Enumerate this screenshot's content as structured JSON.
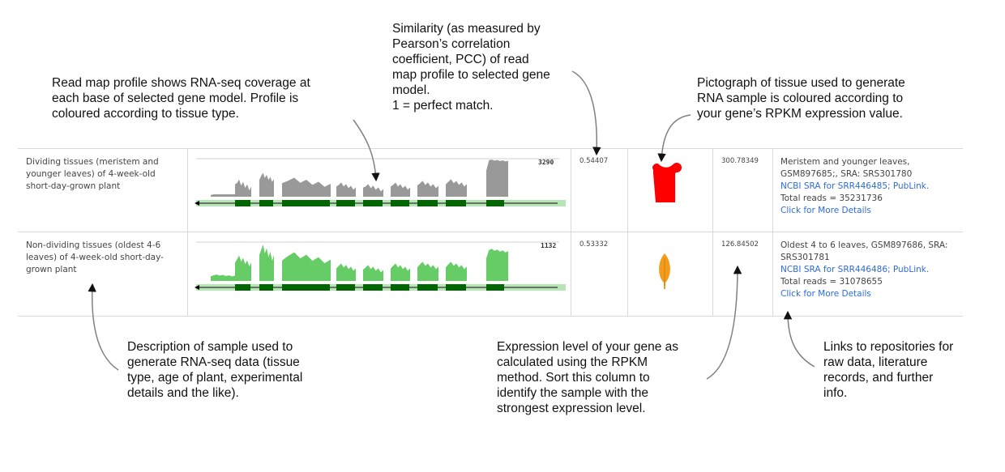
{
  "annotations": {
    "read_map": "Read map profile shows RNA-seq coverage at\neach base of selected gene model. Profile is\ncoloured according to tissue type.",
    "similarity": "Similarity (as measured by\nPearson’s correlation\ncoefficient, PCC) of read\nmap profile to selected gene\nmodel.\n1 = perfect match.",
    "pictograph": "Pictograph of tissue used to generate\nRNA sample is coloured according to\nyour gene’s RPKM expression value.",
    "description": "Description of sample used to\ngenerate RNA-seq data (tissue\ntype, age of plant, experimental\ndetails and the like).",
    "expression": "Expression level of your gene as\ncalculated using the RPKM\nmethod. Sort this column to\nidentify the sample with the\nstrongest expression level.",
    "links": "Links to repositories for\nraw data, literature\nrecords, and further\ninfo."
  },
  "rows": [
    {
      "description": "Dividing tissues (meristem and younger leaves) of 4-week-old short-day-grown plant",
      "map_max": "3290",
      "profile_color": "#999999",
      "pcc": "0.54407",
      "pictograph_icon": "shoot-tissue-icon",
      "pictograph_color": "#ff0000",
      "rpkm": "300.78349",
      "details_line1": "Meristem and younger leaves, GSM897685;, SRA: SRS301780",
      "ncbi_link": "NCBI SRA for SRR446485;",
      "publink": "PubLink.",
      "total_reads": "Total reads = 35231736",
      "more_details": "Click for More Details"
    },
    {
      "description": "Non-dividing tissues (oldest 4-6 leaves) of 4-week-old short-day-grown plant",
      "map_max": "1132",
      "profile_color": "#66cc66",
      "pcc": "0.53332",
      "pictograph_icon": "leaf-icon",
      "pictograph_color": "#f39c1b",
      "rpkm": "126.84502",
      "details_line1": "Oldest 4 to 6 leaves, GSM897686, SRA: SRS301781",
      "ncbi_link": "NCBI SRA for SRR446486;",
      "publink": "PubLink.",
      "total_reads": "Total reads = 31078655",
      "more_details": "Click for More Details"
    }
  ],
  "colors": {
    "gene_model_exon": "#006600",
    "gene_model_track": "#b6e5b6",
    "link": "#2d6cdf",
    "arrow": "#808080"
  }
}
